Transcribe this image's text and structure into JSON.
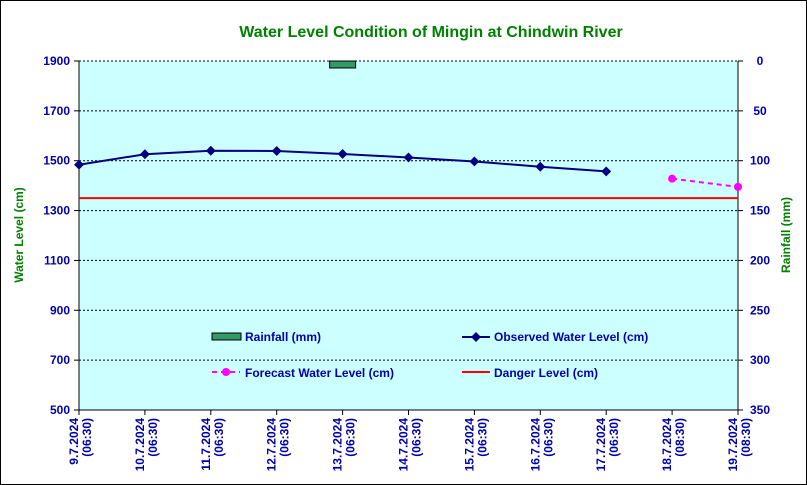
{
  "chart_data": {
    "type": "line",
    "title": "Water Level Condition of Mingin at Chindwin River",
    "ylabel": "Water Level (cm)",
    "y2label": "Rainfall (mm)",
    "ylim": [
      500,
      1900
    ],
    "yticks": [
      500,
      700,
      900,
      1100,
      1300,
      1500,
      1700,
      1900
    ],
    "y2lim": [
      0,
      350
    ],
    "y2ticks": [
      0,
      50,
      100,
      150,
      200,
      250,
      300,
      350
    ],
    "y2_inverted": true,
    "grid": true,
    "plot_background": "#ccffff",
    "categories": [
      [
        "9.7.2024",
        "(06:30)"
      ],
      [
        "10.7.2024",
        "(06:30)"
      ],
      [
        "11.7.2024",
        "(06:30)"
      ],
      [
        "12.7.2024",
        "(06:30)"
      ],
      [
        "13.7.2024",
        "(06:30)"
      ],
      [
        "14.7.2024",
        "(06:30)"
      ],
      [
        "15.7.2024",
        "(06:30)"
      ],
      [
        "16.7.2024",
        "(06:30)"
      ],
      [
        "17.7.2024",
        "(06:30)"
      ],
      [
        "18.7.2024",
        "(08:30)"
      ],
      [
        "19.7.2024",
        "(08:30)"
      ]
    ],
    "series": [
      {
        "name": "Observed Water Level (cm)",
        "color": "#000080",
        "values": [
          1484,
          1526,
          1540,
          1539,
          1527,
          1513,
          1497,
          1476,
          1457,
          null,
          null
        ]
      },
      {
        "name": "Forecast Water Level (cm)",
        "color": "#ff00ff",
        "dashed": true,
        "values": [
          null,
          null,
          null,
          null,
          null,
          null,
          null,
          null,
          null,
          1428,
          1395
        ]
      },
      {
        "name": "Danger Level (cm)",
        "color": "#ff0000",
        "constant": 1350
      },
      {
        "name": "Rainfall (mm)",
        "color": "#339966",
        "axis": "right",
        "type": "bar",
        "values": [
          null,
          null,
          null,
          null,
          7,
          null,
          null,
          null,
          null,
          null,
          null
        ]
      }
    ]
  }
}
